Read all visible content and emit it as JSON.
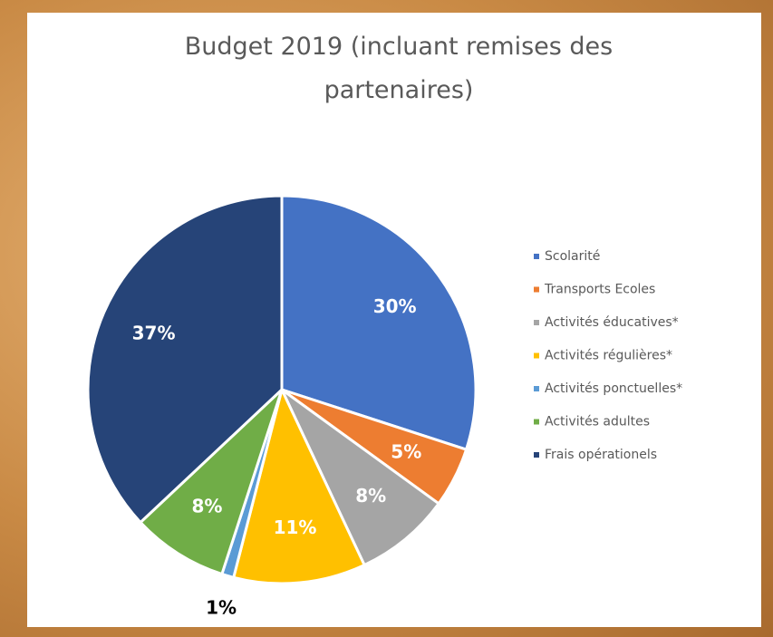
{
  "chart_data": {
    "type": "pie",
    "title": "Budget 2019 (incluant remises des partenaires)",
    "categories": [
      "Scolarité",
      "Transports Ecoles",
      "Activités éducatives*",
      "Activités régulières*",
      "Activités ponctuelles*",
      "Activités adultes",
      "Frais opérationels"
    ],
    "values": [
      30,
      5,
      8,
      11,
      1,
      8,
      37
    ],
    "value_labels": [
      "30%",
      "5%",
      "8%",
      "11%",
      "1%",
      "8%",
      "37%"
    ],
    "colors": [
      "#4472c4",
      "#ed7d31",
      "#a5a5a5",
      "#ffc000",
      "#5b9bd5",
      "#70ad47",
      "#264478"
    ],
    "legend": "right"
  }
}
